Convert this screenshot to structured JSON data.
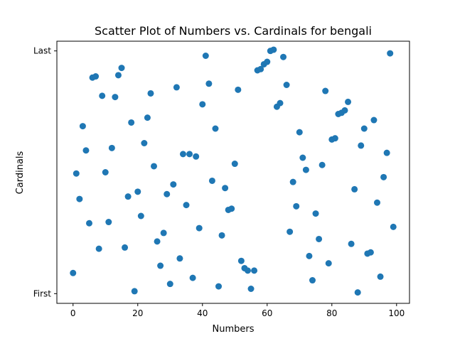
{
  "chart_data": {
    "type": "scatter",
    "title": "Scatter Plot of Numbers vs. Cardinals for bengali",
    "xlabel": "Numbers",
    "ylabel": "Cardinals",
    "xlim": [
      -5,
      104
    ],
    "ylim": [
      -0.04,
      1.04
    ],
    "grid": false,
    "legend": "none",
    "x_ticks": [
      0,
      20,
      40,
      60,
      80,
      100
    ],
    "y_ticks": [
      {
        "value": 0,
        "label": "First"
      },
      {
        "value": 1,
        "label": "Last"
      }
    ],
    "marker_color": "#1f77b4",
    "x": [
      0,
      1,
      2,
      3,
      4,
      5,
      6,
      7,
      8,
      9,
      10,
      11,
      12,
      13,
      14,
      15,
      16,
      17,
      18,
      19,
      20,
      21,
      22,
      23,
      24,
      25,
      26,
      27,
      28,
      29,
      30,
      31,
      32,
      33,
      34,
      35,
      36,
      37,
      38,
      39,
      40,
      41,
      42,
      43,
      44,
      45,
      46,
      47,
      48,
      49,
      50,
      51,
      52,
      53,
      54,
      55,
      56,
      57,
      58,
      59,
      60,
      61,
      62,
      63,
      64,
      65,
      66,
      67,
      68,
      69,
      70,
      71,
      72,
      73,
      74,
      75,
      76,
      77,
      78,
      79,
      80,
      81,
      82,
      83,
      84,
      85,
      86,
      87,
      88,
      89,
      90,
      91,
      92,
      93,
      94,
      95,
      96,
      97,
      98,
      99
    ],
    "y": [
      0.085,
      0.495,
      0.39,
      0.69,
      0.59,
      0.29,
      0.89,
      0.895,
      0.185,
      0.815,
      0.5,
      0.295,
      0.6,
      0.81,
      0.9,
      0.93,
      0.19,
      0.4,
      0.705,
      0.01,
      0.42,
      0.32,
      0.62,
      0.725,
      0.825,
      0.525,
      0.215,
      0.115,
      0.25,
      0.41,
      0.04,
      0.45,
      0.85,
      0.145,
      0.575,
      0.365,
      0.575,
      0.065,
      0.565,
      0.27,
      0.78,
      0.98,
      0.865,
      0.465,
      0.68,
      0.03,
      0.24,
      0.435,
      0.345,
      0.35,
      0.535,
      0.84,
      0.135,
      0.105,
      0.095,
      0.02,
      0.095,
      0.92,
      0.925,
      0.945,
      0.955,
      1.0,
      1.005,
      0.77,
      0.785,
      0.975,
      0.86,
      0.255,
      0.46,
      0.36,
      0.665,
      0.56,
      0.51,
      0.155,
      0.055,
      0.33,
      0.225,
      0.53,
      0.835,
      0.125,
      0.635,
      0.64,
      0.74,
      0.745,
      0.755,
      0.79,
      0.205,
      0.43,
      0.005,
      0.61,
      0.68,
      0.165,
      0.17,
      0.715,
      0.375,
      0.07,
      0.48,
      0.58,
      0.99,
      0.275
    ]
  }
}
